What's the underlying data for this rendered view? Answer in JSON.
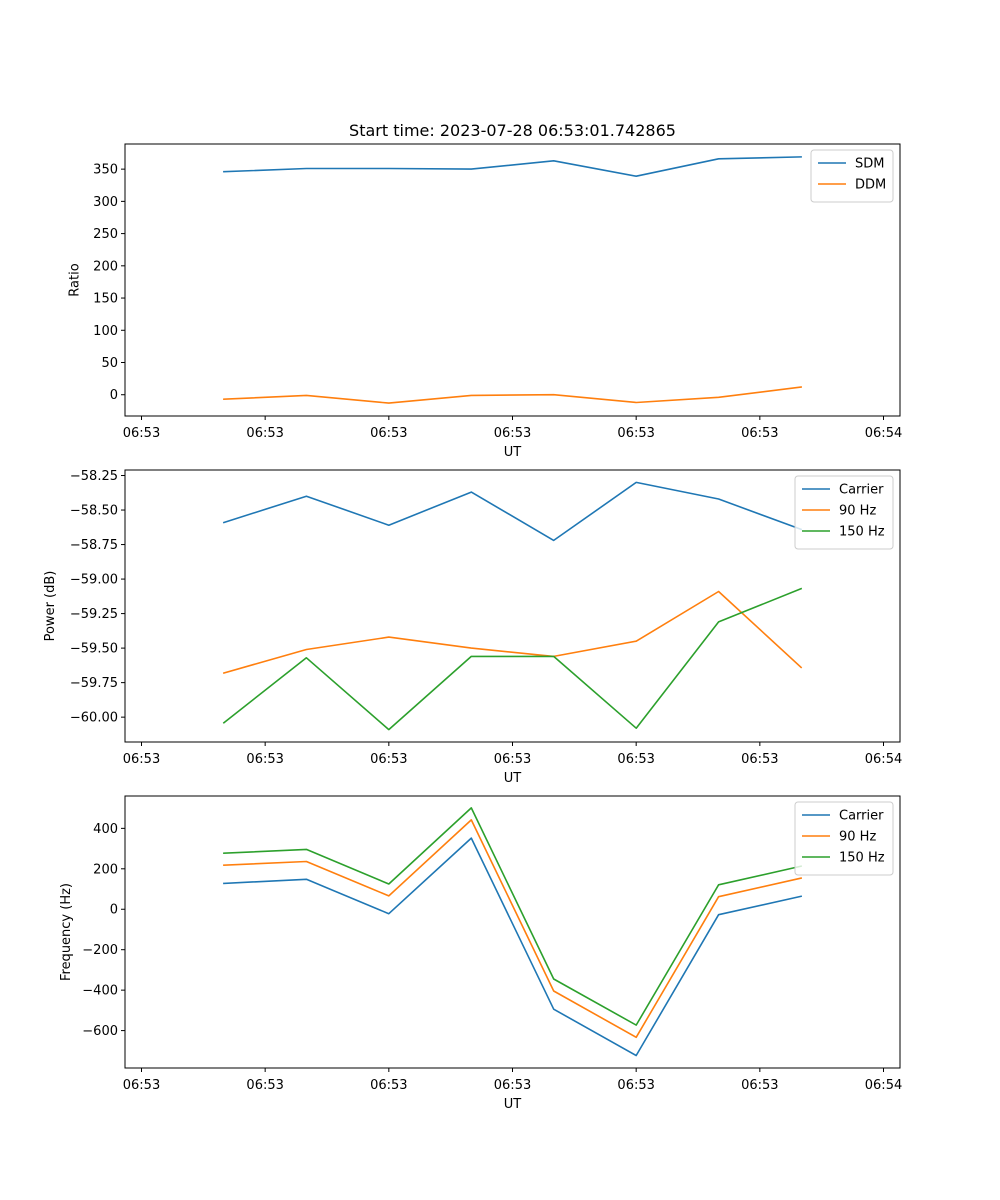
{
  "figure_title": "Start time: 2023-07-28 06:53:01.742865",
  "colors": {
    "blue": "#1f77b4",
    "orange": "#ff7f0e",
    "green": "#2ca02c"
  },
  "chart_data": [
    {
      "type": "line",
      "title": "Start time: 2023-07-28 06:53:01.742865",
      "xlabel": "UT",
      "ylabel": "Ratio",
      "x": [
        1,
        2,
        3,
        4,
        5,
        6,
        7,
        8
      ],
      "xlim": [
        -0.2,
        9.2
      ],
      "xticks": [
        0,
        1.5,
        3,
        4.5,
        6,
        7.5,
        9
      ],
      "xtick_labels": [
        "06:53",
        "06:53",
        "06:53",
        "06:53",
        "06:53",
        "06:53",
        "06:54"
      ],
      "ylim": [
        -33,
        389
      ],
      "yticks": [
        0,
        50,
        100,
        150,
        200,
        250,
        300,
        350
      ],
      "ytick_labels": [
        "0",
        "50",
        "100",
        "150",
        "200",
        "250",
        "300",
        "350"
      ],
      "legend": "top-right",
      "series": [
        {
          "name": "SDM",
          "color": "#1f77b4",
          "values": [
            346,
            351,
            351,
            350,
            363,
            339,
            366,
            369
          ]
        },
        {
          "name": "DDM",
          "color": "#ff7f0e",
          "values": [
            -7,
            -1,
            -13,
            -1,
            0,
            -12,
            -4,
            12
          ]
        }
      ]
    },
    {
      "type": "line",
      "title": "",
      "xlabel": "UT",
      "ylabel": "Power (dB)",
      "x": [
        1,
        2,
        3,
        4,
        5,
        6,
        7,
        8
      ],
      "xlim": [
        -0.2,
        9.2
      ],
      "xticks": [
        0,
        1.5,
        3,
        4.5,
        6,
        7.5,
        9
      ],
      "xtick_labels": [
        "06:53",
        "06:53",
        "06:53",
        "06:53",
        "06:53",
        "06:53",
        "06:54"
      ],
      "ylim": [
        -60.18,
        -58.21
      ],
      "yticks": [
        -60.0,
        -59.75,
        -59.5,
        -59.25,
        -59.0,
        -58.75,
        -58.5,
        -58.25
      ],
      "ytick_labels": [
        "−60.00",
        "−59.75",
        "−59.50",
        "−59.25",
        "−59.00",
        "−58.75",
        "−58.50",
        "−58.25"
      ],
      "legend": "top-right",
      "series": [
        {
          "name": "Carrier",
          "color": "#1f77b4",
          "values": [
            -58.59,
            -58.4,
            -58.61,
            -58.37,
            -58.72,
            -58.3,
            -58.42,
            -58.64
          ]
        },
        {
          "name": "90 Hz",
          "color": "#ff7f0e",
          "values": [
            -59.68,
            -59.51,
            -59.42,
            -59.5,
            -59.56,
            -59.45,
            -59.09,
            -59.64
          ]
        },
        {
          "name": "150 Hz",
          "color": "#2ca02c",
          "values": [
            -60.04,
            -59.57,
            -60.09,
            -59.56,
            -59.56,
            -60.08,
            -59.31,
            -59.07
          ]
        }
      ]
    },
    {
      "type": "line",
      "title": "",
      "xlabel": "UT",
      "ylabel": "Frequency (Hz)",
      "x": [
        1,
        2,
        3,
        4,
        5,
        6,
        7,
        8
      ],
      "xlim": [
        -0.2,
        9.2
      ],
      "xticks": [
        0,
        1.5,
        3,
        4.5,
        6,
        7.5,
        9
      ],
      "xtick_labels": [
        "06:53",
        "06:53",
        "06:53",
        "06:53",
        "06:53",
        "06:53",
        "06:54"
      ],
      "ylim": [
        -785,
        560
      ],
      "yticks": [
        -600,
        -400,
        -200,
        0,
        200,
        400
      ],
      "ytick_labels": [
        "−600",
        "−400",
        "−200",
        "0",
        "200",
        "400"
      ],
      "legend": "top-right",
      "series": [
        {
          "name": "Carrier",
          "color": "#1f77b4",
          "values": [
            128,
            148,
            -22,
            352,
            -494,
            -723,
            -27,
            64
          ]
        },
        {
          "name": "90 Hz",
          "color": "#ff7f0e",
          "values": [
            218,
            236,
            66,
            442,
            -404,
            -633,
            62,
            154
          ]
        },
        {
          "name": "150 Hz",
          "color": "#2ca02c",
          "values": [
            277,
            296,
            125,
            501,
            -345,
            -573,
            121,
            213
          ]
        }
      ]
    }
  ]
}
